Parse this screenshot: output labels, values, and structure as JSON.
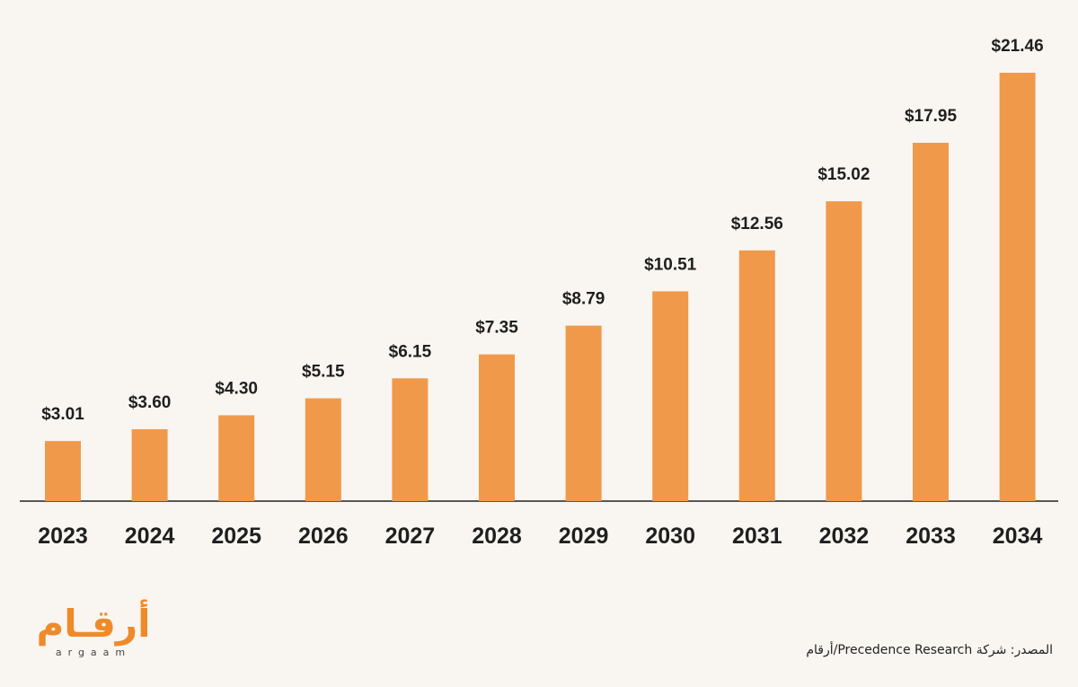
{
  "chart_data": {
    "type": "bar",
    "categories": [
      "2023",
      "2024",
      "2025",
      "2026",
      "2027",
      "2028",
      "2029",
      "2030",
      "2031",
      "2032",
      "2033",
      "2034"
    ],
    "values": [
      3.01,
      3.6,
      4.3,
      5.15,
      6.15,
      7.35,
      8.79,
      10.51,
      12.56,
      15.02,
      17.95,
      21.46
    ],
    "value_labels": [
      "$3.01",
      "$3.60",
      "$4.30",
      "$5.15",
      "$6.15",
      "$7.35",
      "$8.79",
      "$10.51",
      "$12.56",
      "$15.02",
      "$17.95",
      "$21.46"
    ],
    "title": "",
    "xlabel": "",
    "ylabel": "",
    "ylim": [
      0,
      21.46
    ],
    "grid": false,
    "bar_color": "#f0994b",
    "axis_color": "#222222"
  },
  "logo": {
    "arabic": "أرقـام",
    "latin": "argaam",
    "color": "#ef8a2a"
  },
  "source_text": "المصدر: شركة Precedence Research/أرقام"
}
